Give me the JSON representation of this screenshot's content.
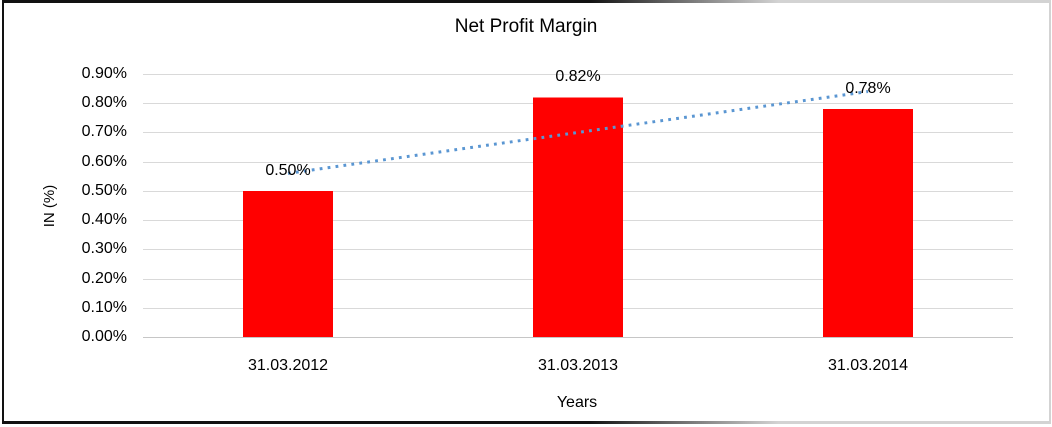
{
  "chart_data": {
    "type": "bar",
    "title": "Net Profit Margin",
    "xlabel": "Years",
    "ylabel": "IN (%)",
    "categories": [
      "31.03.2012",
      "31.03.2013",
      "31.03.2014"
    ],
    "series": [
      {
        "name": "Net Profit Margin",
        "values": [
          0.5,
          0.82,
          0.78
        ],
        "color": "#FF0000"
      }
    ],
    "data_labels": [
      "0.50%",
      "0.82%",
      "0.78%"
    ],
    "ylim": [
      0,
      0.9
    ],
    "ytick_step": 0.1,
    "ytick_labels": [
      "0.00%",
      "0.10%",
      "0.20%",
      "0.30%",
      "0.40%",
      "0.50%",
      "0.60%",
      "0.70%",
      "0.80%",
      "0.90%"
    ],
    "grid": true,
    "legend": "none",
    "trendline": {
      "type": "linear",
      "style": "dotted",
      "color": "#5A96D2",
      "fitted_start": 0.56,
      "fitted_end": 0.84
    },
    "colors": {
      "bar": "#FF0000",
      "gridline": "#D9D9D9",
      "axis_line": "#C6C6C6",
      "text": "#000000",
      "background": "#FFFFFF"
    }
  }
}
